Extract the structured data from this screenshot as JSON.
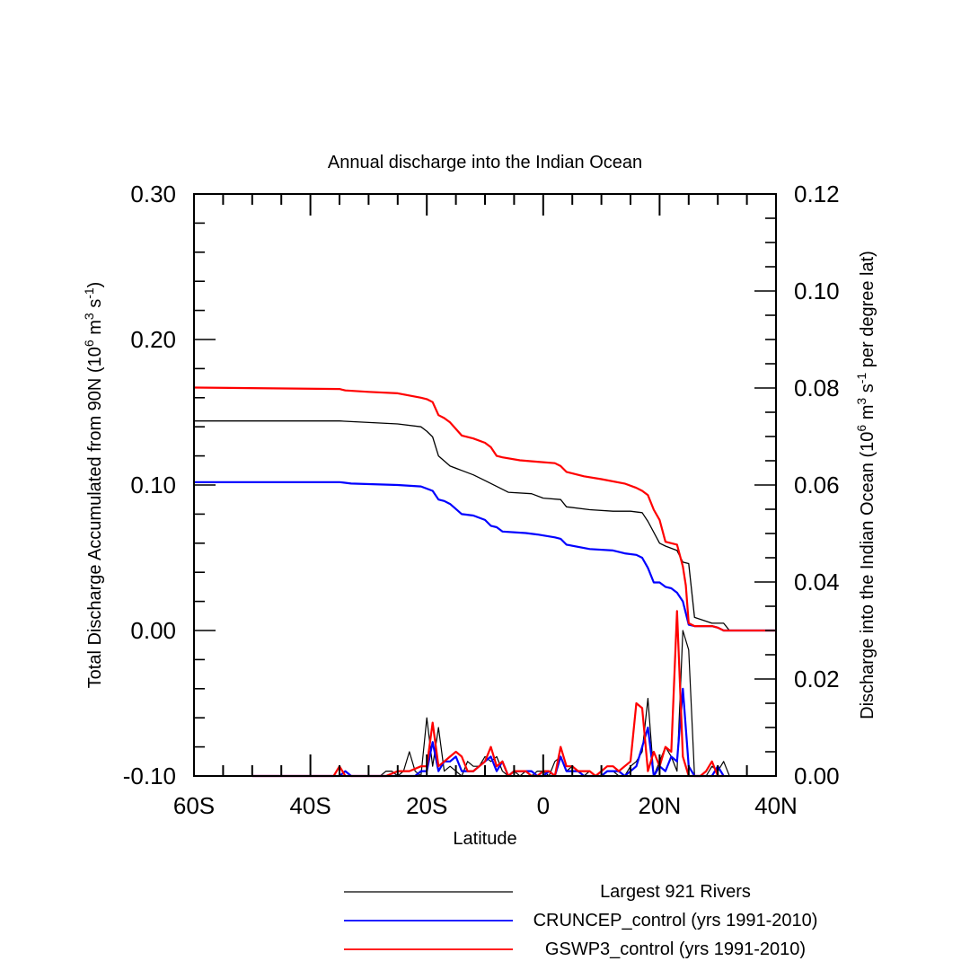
{
  "chart_data": {
    "type": "line",
    "title": "Annual discharge into the Indian Ocean",
    "xlabel": "Latitude",
    "ylabel_left": "Total Discharge Accumulated from 90N (10^6 m^3 s^-1)",
    "ylabel_left_parts": {
      "base": "Total Discharge Accumulated from 90N (10",
      "exp1": "6",
      "mid1": " m",
      "exp2": "3",
      "mid2": " s",
      "exp3": "-1",
      "end": ")"
    },
    "ylabel_right": "Discharge into the Indian Ocean (10^6 m^3 s^-1 per degree lat)",
    "ylabel_right_parts": {
      "base": "Discharge into the Indian Ocean (10",
      "exp1": "6",
      "mid1": " m",
      "exp2": "3",
      "mid2": " s",
      "exp3": "-1",
      "end": "  per degree lat)"
    },
    "xlim": [
      -60,
      40
    ],
    "ylim_left": [
      -0.1,
      0.3
    ],
    "ylim_right": [
      0.0,
      0.12
    ],
    "x_ticks": [
      -60,
      -40,
      -20,
      0,
      20,
      40
    ],
    "x_tick_labels": [
      "60S",
      "40S",
      "20S",
      "0",
      "20N",
      "40N"
    ],
    "y_left_ticks": [
      -0.1,
      0.0,
      0.1,
      0.2,
      0.3
    ],
    "y_left_tick_labels": [
      "-0.10",
      "0.00",
      "0.10",
      "0.20",
      "0.30"
    ],
    "y_right_ticks": [
      0.0,
      0.02,
      0.04,
      0.06,
      0.08,
      0.1,
      0.12
    ],
    "y_right_tick_labels": [
      "0.00",
      "0.02",
      "0.04",
      "0.06",
      "0.08",
      "0.10",
      "0.12"
    ],
    "legend": {
      "position": "bottom-right",
      "entries": [
        {
          "label": "Largest 921 Rivers",
          "color": "#000000"
        },
        {
          "label": "CRUNCEP_control (yrs 1991-2010)",
          "color": "#0000ff"
        },
        {
          "label": "GSWP3_control (yrs 1991-2010)",
          "color": "#ff0000"
        }
      ]
    },
    "series": [
      {
        "name": "Largest 921 Rivers",
        "axis": "left",
        "color": "#000000",
        "width": 1.3,
        "x": [
          -60,
          -35,
          -25,
          -21,
          -20,
          -19,
          -18,
          -16,
          -14,
          -12,
          -10,
          -8,
          -6,
          -2,
          0,
          3,
          4,
          8,
          12,
          15,
          17,
          18,
          20,
          21,
          23,
          24,
          25,
          26,
          29,
          31,
          32,
          40
        ],
        "y": [
          0.144,
          0.144,
          0.142,
          0.14,
          0.137,
          0.133,
          0.12,
          0.113,
          0.11,
          0.107,
          0.103,
          0.099,
          0.095,
          0.094,
          0.091,
          0.09,
          0.085,
          0.083,
          0.082,
          0.082,
          0.081,
          0.075,
          0.06,
          0.058,
          0.055,
          0.047,
          0.046,
          0.009,
          0.005,
          0.005,
          0.0,
          0.0
        ]
      },
      {
        "name": "CRUNCEP_control (yrs 1991-2010)",
        "axis": "left",
        "color": "#0000ff",
        "width": 2.2,
        "x": [
          -60,
          -35,
          -33,
          -25,
          -21,
          -19,
          -18,
          -17,
          -16,
          -14,
          -12,
          -10,
          -9,
          -8,
          -7,
          -3,
          -1,
          2,
          3,
          4,
          8,
          12,
          14,
          16,
          17,
          18,
          19,
          20,
          21,
          22,
          23,
          24,
          25,
          26,
          29,
          30,
          31,
          40
        ],
        "y": [
          0.102,
          0.102,
          0.101,
          0.1,
          0.099,
          0.096,
          0.09,
          0.089,
          0.087,
          0.08,
          0.079,
          0.076,
          0.072,
          0.071,
          0.068,
          0.067,
          0.066,
          0.064,
          0.063,
          0.059,
          0.056,
          0.055,
          0.053,
          0.052,
          0.05,
          0.043,
          0.033,
          0.033,
          0.03,
          0.029,
          0.026,
          0.02,
          0.004,
          0.003,
          0.003,
          0.002,
          0.0,
          0.0
        ]
      },
      {
        "name": "GSWP3_control (yrs 1991-2010)",
        "axis": "left",
        "color": "#ff0000",
        "width": 2.2,
        "x": [
          -60,
          -35,
          -34,
          -30,
          -25,
          -21,
          -20,
          -19,
          -18,
          -17,
          -16,
          -14,
          -12,
          -10,
          -9,
          -8,
          -7,
          -4,
          -1,
          2,
          3,
          4,
          7,
          10,
          14,
          16,
          17,
          18,
          19,
          20,
          21,
          23,
          24,
          24.5,
          25,
          26,
          29,
          30,
          31,
          40
        ],
        "y": [
          0.167,
          0.166,
          0.165,
          0.164,
          0.163,
          0.16,
          0.159,
          0.157,
          0.148,
          0.146,
          0.143,
          0.134,
          0.132,
          0.129,
          0.126,
          0.12,
          0.119,
          0.117,
          0.116,
          0.115,
          0.113,
          0.109,
          0.106,
          0.104,
          0.101,
          0.098,
          0.096,
          0.093,
          0.083,
          0.076,
          0.061,
          0.059,
          0.044,
          0.031,
          0.005,
          0.003,
          0.003,
          0.002,
          0.0,
          0.0
        ]
      },
      {
        "name": "Largest 921 Rivers (per degree lat)",
        "axis": "right",
        "color": "#000000",
        "width": 1.2,
        "x": [
          -50,
          -48,
          -45,
          -43,
          -40,
          -38,
          -35,
          -34,
          -33,
          -30,
          -28,
          -27,
          -26,
          -25,
          -24,
          -23,
          -22,
          -21,
          -20,
          -19,
          -18,
          -17,
          -16,
          -15,
          -14,
          -13,
          -12,
          -11,
          -10,
          -9,
          -8,
          -7,
          -6,
          -5,
          -4,
          -3,
          -2,
          -1,
          0,
          1,
          2,
          3,
          4,
          5,
          6,
          7,
          8,
          9,
          10,
          11,
          12,
          13,
          14,
          15,
          16,
          17,
          18,
          19,
          20,
          21,
          22,
          23,
          24,
          25,
          26,
          27,
          28,
          29,
          30,
          31,
          32
        ],
        "y": [
          0.0,
          0.0,
          0.0,
          0.0,
          0.0,
          0.0,
          0.0,
          0.001,
          0.0,
          0.0,
          0.0,
          0.001,
          0.001,
          0.0,
          0.001,
          0.005,
          0.001,
          0.0,
          0.012,
          0.002,
          0.01,
          0.001,
          0.002,
          0.001,
          0.0,
          0.003,
          0.002,
          0.002,
          0.004,
          0.003,
          0.004,
          0.001,
          0.0,
          0.001,
          0.0,
          0.001,
          0.0,
          0.001,
          0.001,
          0.0,
          0.003,
          0.004,
          0.001,
          0.002,
          0.001,
          0.0,
          0.001,
          0.0,
          0.0,
          0.001,
          0.001,
          0.0,
          0.0,
          0.002,
          0.003,
          0.005,
          0.016,
          0.0,
          0.003,
          0.006,
          0.004,
          0.001,
          0.03,
          0.026,
          0.0,
          0.0,
          0.0,
          0.002,
          0.001,
          0.003,
          0.0
        ]
      },
      {
        "name": "CRUNCEP_control (per degree lat)",
        "axis": "right",
        "color": "#0000ff",
        "width": 2.2,
        "x": [
          -50,
          -45,
          -40,
          -35,
          -34,
          -33,
          -30,
          -27,
          -25,
          -22,
          -21,
          -20,
          -19,
          -18,
          -17,
          -16,
          -15,
          -14,
          -13,
          -12,
          -11,
          -10,
          -9,
          -8,
          -7,
          -6,
          -5,
          -4,
          -3,
          -2,
          -1,
          0,
          1,
          2,
          3,
          4,
          5,
          6,
          7,
          8,
          9,
          10,
          11,
          12,
          13,
          14,
          15,
          16,
          17,
          18,
          19,
          20,
          21,
          22,
          23,
          24,
          25,
          26,
          27,
          28,
          29,
          30,
          31
        ],
        "y": [
          0.0,
          0.0,
          0.0,
          0.0,
          0.001,
          0.0,
          0.0,
          0.0,
          0.0,
          0.0,
          0.001,
          0.001,
          0.007,
          0.001,
          0.003,
          0.003,
          0.004,
          0.001,
          0.001,
          0.001,
          0.002,
          0.003,
          0.004,
          0.001,
          0.003,
          0.0,
          0.001,
          0.001,
          0.001,
          0.001,
          0.0,
          0.0,
          0.001,
          0.0,
          0.004,
          0.001,
          0.001,
          0.001,
          0.0,
          0.0,
          0.0,
          0.0,
          0.001,
          0.001,
          0.001,
          0.0,
          0.001,
          0.002,
          0.006,
          0.01,
          0.0,
          0.002,
          0.001,
          0.004,
          0.003,
          0.018,
          0.002,
          0.0,
          0.0,
          0.0,
          0.0,
          0.002,
          0.0
        ]
      },
      {
        "name": "GSWP3_control (per degree lat)",
        "axis": "right",
        "color": "#ff0000",
        "width": 2.2,
        "x": [
          -50,
          -45,
          -40,
          -36,
          -35,
          -34,
          -30,
          -27,
          -25,
          -23,
          -21,
          -20,
          -19,
          -18,
          -17,
          -16,
          -15,
          -14,
          -13,
          -12,
          -11,
          -10,
          -9,
          -8,
          -7,
          -6,
          -5,
          -4,
          -3,
          -2,
          -1,
          0,
          1,
          2,
          3,
          4,
          5,
          6,
          7,
          8,
          9,
          10,
          11,
          12,
          13,
          14,
          15,
          16,
          17,
          18,
          19,
          20,
          21,
          22,
          23,
          24,
          25,
          26,
          27,
          28,
          29,
          30,
          31
        ],
        "y": [
          0.0,
          0.0,
          0.0,
          0.0,
          0.002,
          0.0,
          0.0,
          0.0,
          0.001,
          0.001,
          0.002,
          0.002,
          0.011,
          0.002,
          0.003,
          0.004,
          0.005,
          0.004,
          0.001,
          0.001,
          0.002,
          0.003,
          0.006,
          0.002,
          0.003,
          0.0,
          0.001,
          0.001,
          0.001,
          0.0,
          0.0,
          0.001,
          0.001,
          0.0,
          0.006,
          0.002,
          0.002,
          0.001,
          0.001,
          0.001,
          0.0,
          0.001,
          0.002,
          0.002,
          0.001,
          0.002,
          0.003,
          0.015,
          0.014,
          0.001,
          0.005,
          0.002,
          0.006,
          0.005,
          0.034,
          0.004,
          0.0,
          0.0,
          0.0,
          0.001,
          0.003,
          0.0,
          0.0
        ]
      }
    ]
  }
}
